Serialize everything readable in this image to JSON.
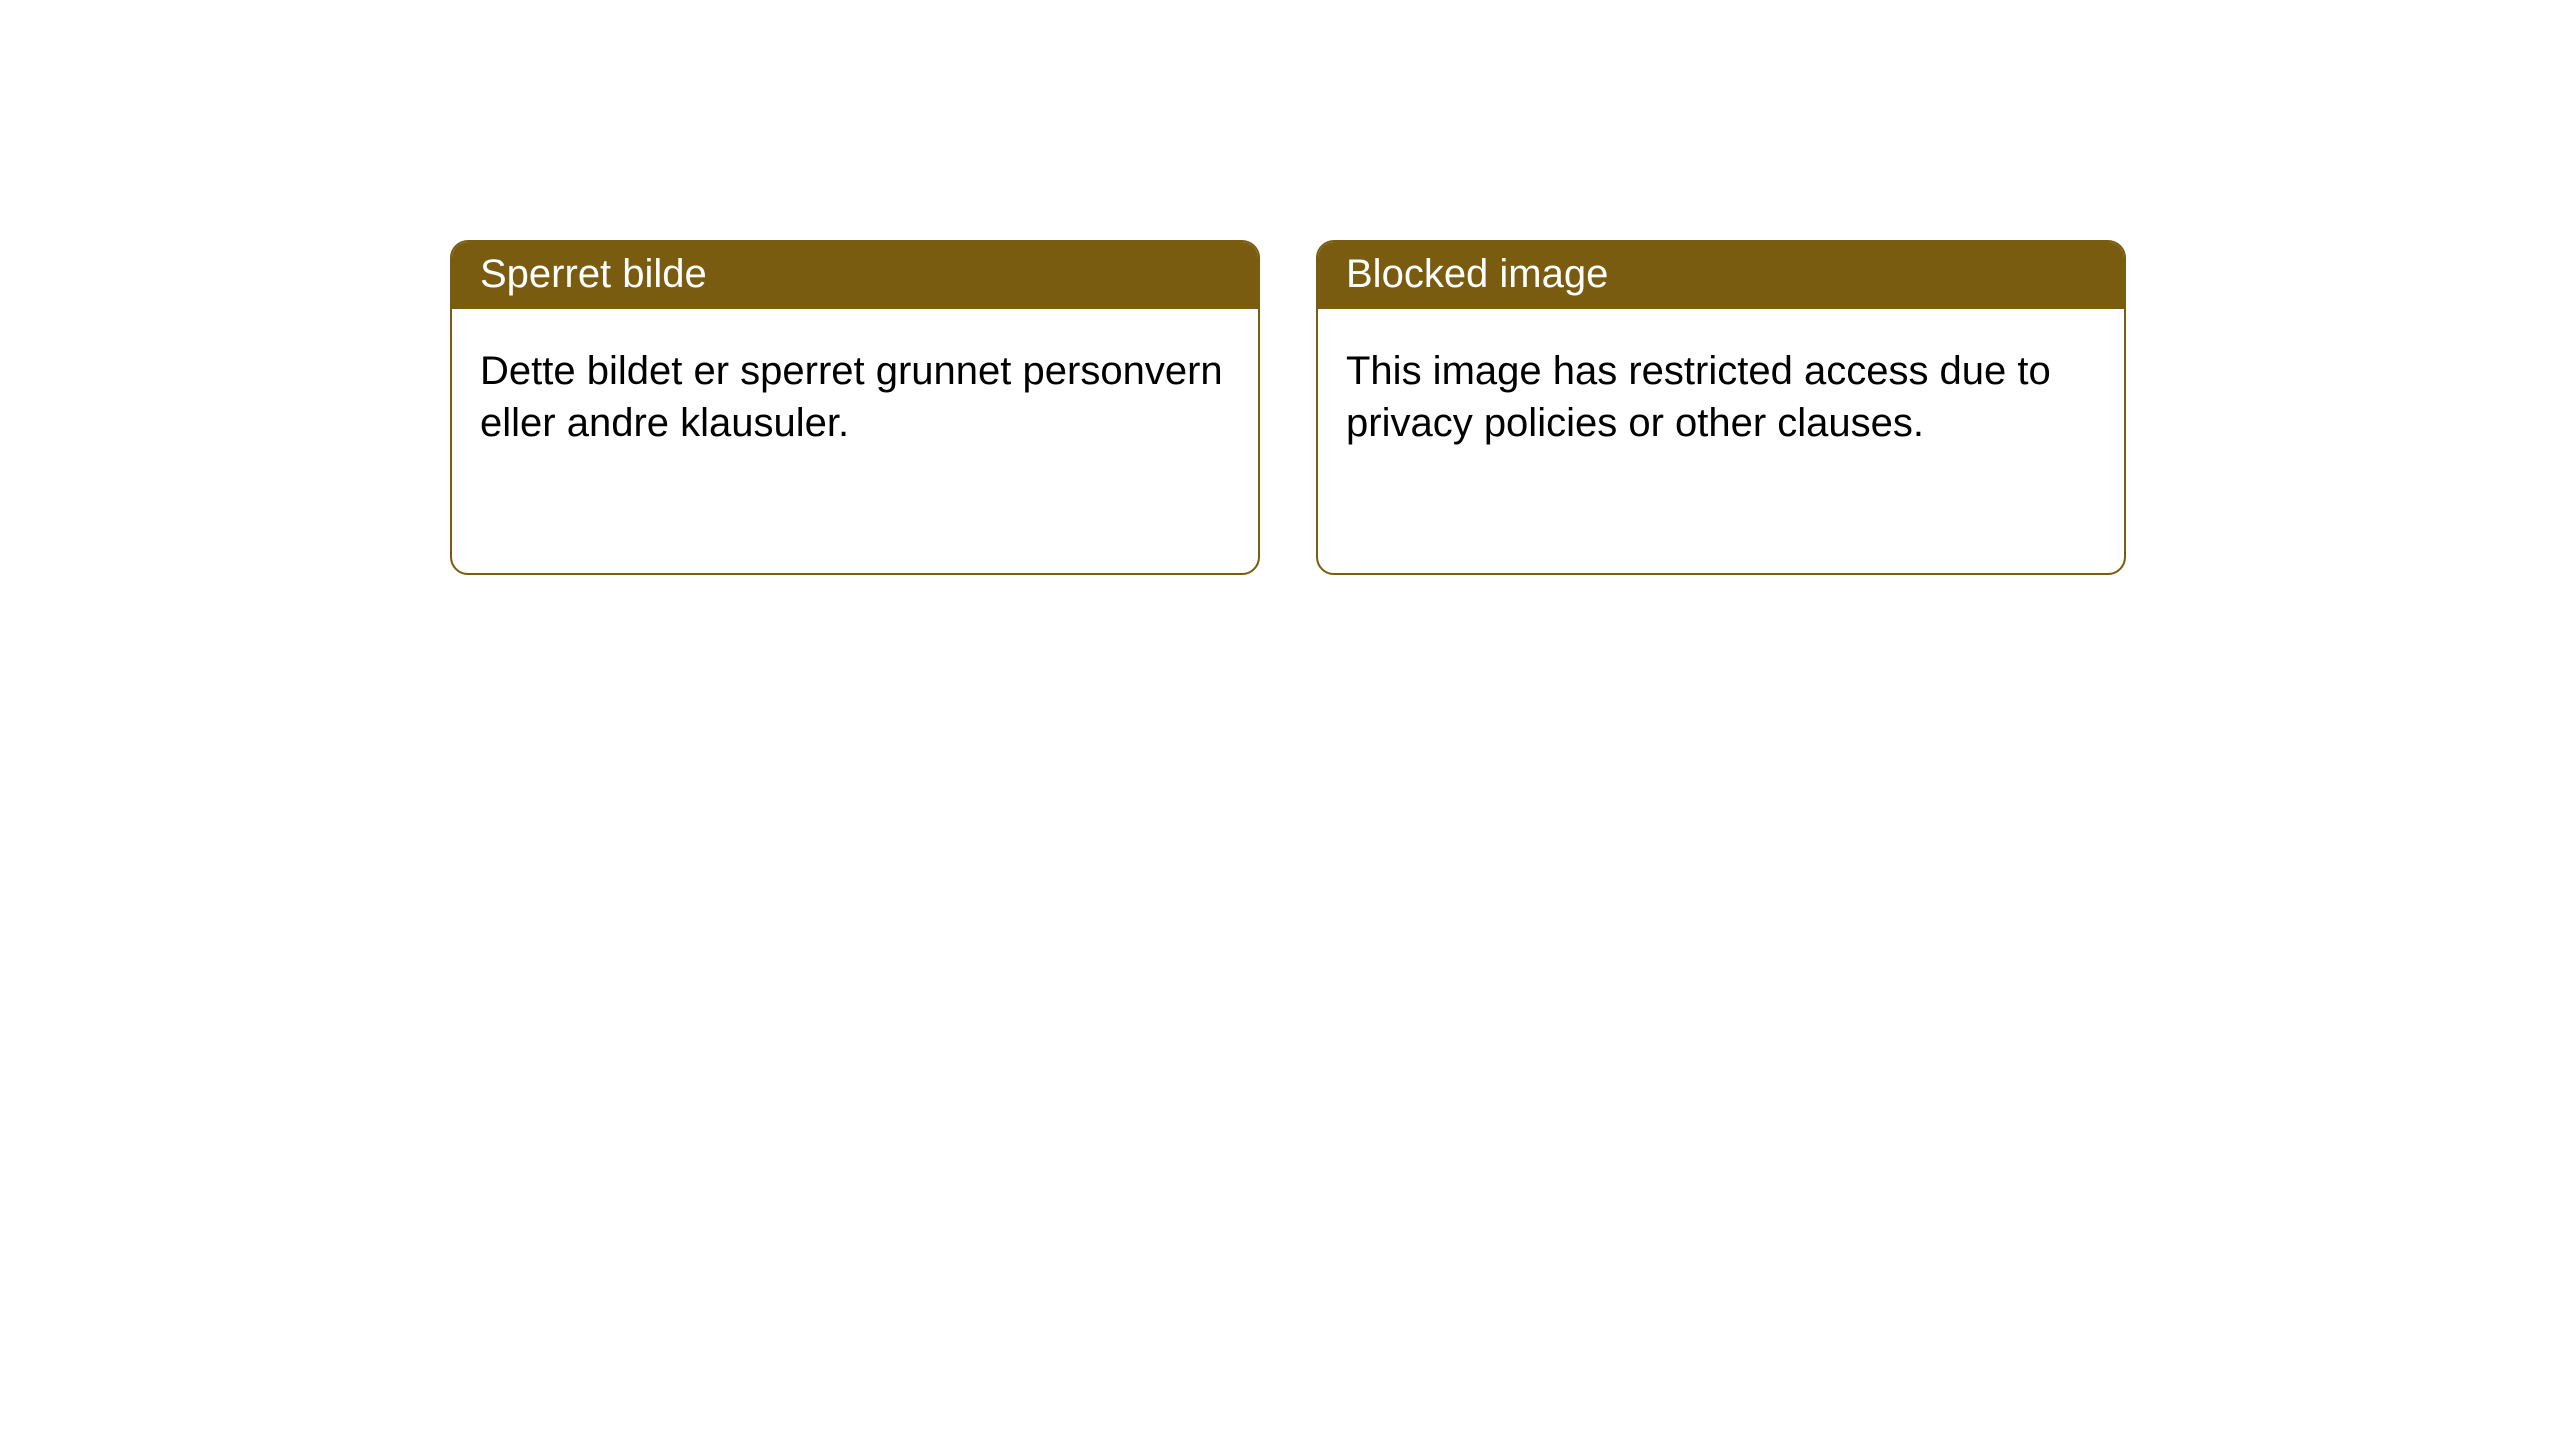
{
  "cards": [
    {
      "title": "Sperret bilde",
      "body": "Dette bildet er sperret grunnet personvern eller andre klausuler."
    },
    {
      "title": "Blocked image",
      "body": "This image has restricted access due to privacy policies or other clauses."
    }
  ],
  "style": {
    "header_bg": "#7a5c10",
    "header_text_color": "#ffffff",
    "border_color": "#7a5c10",
    "body_text_color": "#000000",
    "background_color": "#ffffff",
    "border_radius": 18,
    "header_fontsize": 40,
    "body_fontsize": 40
  }
}
